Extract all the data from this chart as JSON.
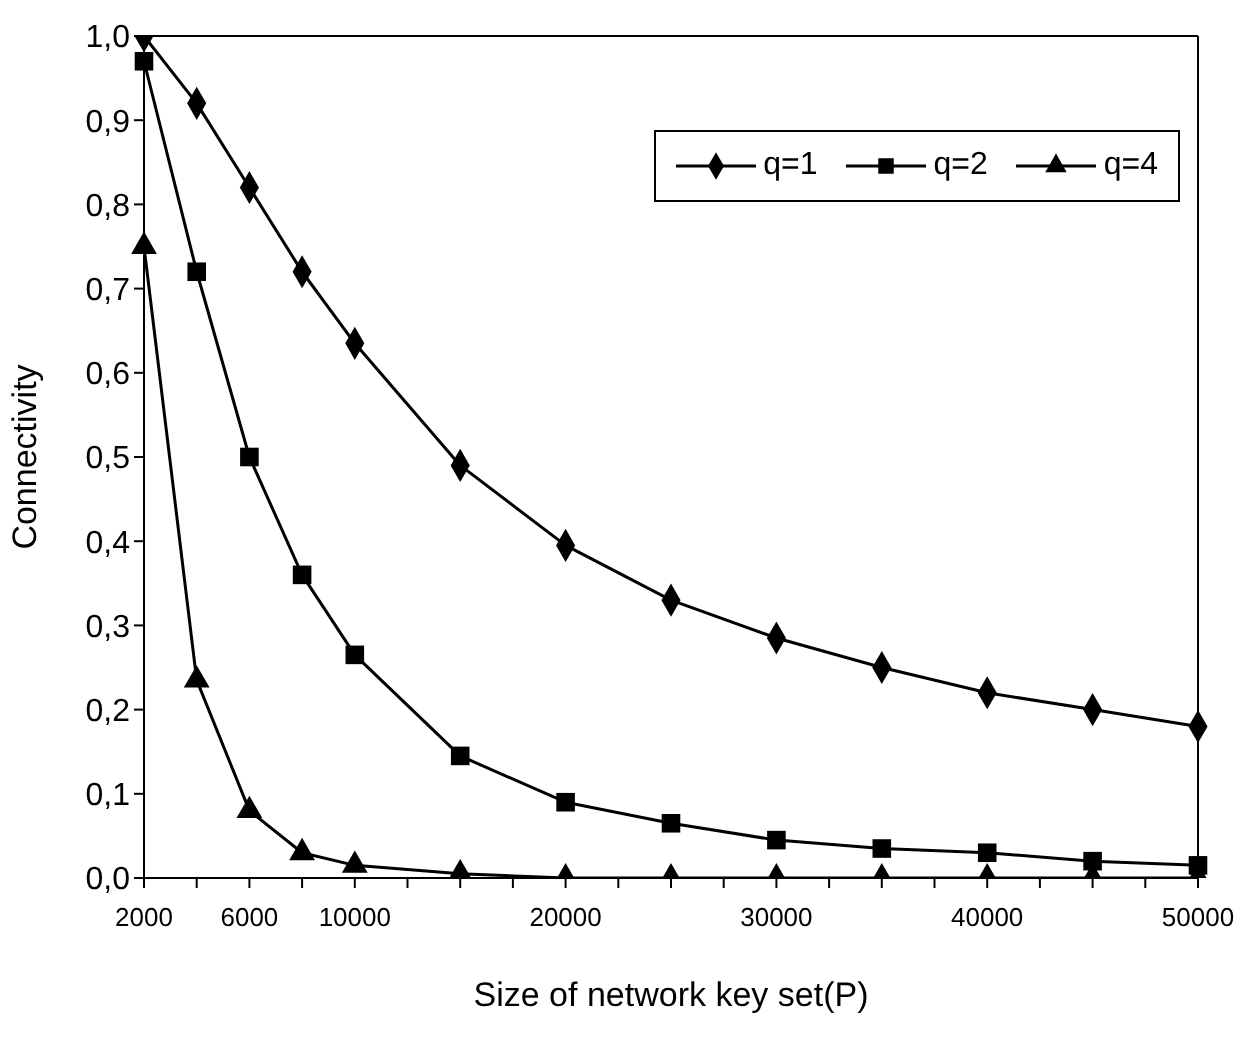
{
  "chart_data": {
    "type": "line",
    "xlabel": "Size of network key set(P)",
    "ylabel": "Connectivity",
    "categories": [
      "2000",
      null,
      "6000",
      null,
      "10000",
      null,
      null,
      null,
      "20000",
      null,
      null,
      null,
      "30000",
      null,
      null,
      null,
      "40000",
      null,
      null,
      null,
      "50000"
    ],
    "series": [
      {
        "name": "q=1",
        "color": "#000000",
        "marker": "diamond",
        "values": [
          1.0,
          0.92,
          0.82,
          0.72,
          0.635,
          null,
          0.49,
          null,
          0.395,
          null,
          0.33,
          null,
          0.285,
          null,
          0.25,
          null,
          0.22,
          null,
          0.2,
          null,
          0.18
        ]
      },
      {
        "name": "q=2",
        "color": "#000000",
        "marker": "square",
        "values": [
          0.97,
          0.72,
          0.5,
          0.36,
          0.265,
          null,
          0.145,
          null,
          0.09,
          null,
          0.065,
          null,
          0.045,
          null,
          0.035,
          null,
          0.03,
          null,
          0.02,
          null,
          0.015
        ]
      },
      {
        "name": "q=4",
        "color": "#000000",
        "marker": "triangle",
        "values": [
          0.75,
          0.235,
          0.08,
          0.03,
          0.015,
          null,
          0.005,
          null,
          0.0,
          null,
          0.0,
          null,
          0.0,
          null,
          0.0,
          null,
          0.0,
          null,
          0.0,
          null,
          0.0
        ]
      }
    ],
    "ylim": [
      0,
      1
    ],
    "yticks": [
      {
        "value": 0,
        "label": "0,0"
      },
      {
        "value": 0.1,
        "label": "0,1"
      },
      {
        "value": 0.2,
        "label": "0,2"
      },
      {
        "value": 0.3,
        "label": "0,3"
      },
      {
        "value": 0.4,
        "label": "0,4"
      },
      {
        "value": 0.5,
        "label": "0,5"
      },
      {
        "value": 0.6,
        "label": "0,6"
      },
      {
        "value": 0.7,
        "label": "0,7"
      },
      {
        "value": 0.8,
        "label": "0,8"
      },
      {
        "value": 0.9,
        "label": "0,9"
      },
      {
        "value": 1,
        "label": "1,0"
      }
    ],
    "grid": false,
    "legend": "top right",
    "line_style": "solid"
  }
}
